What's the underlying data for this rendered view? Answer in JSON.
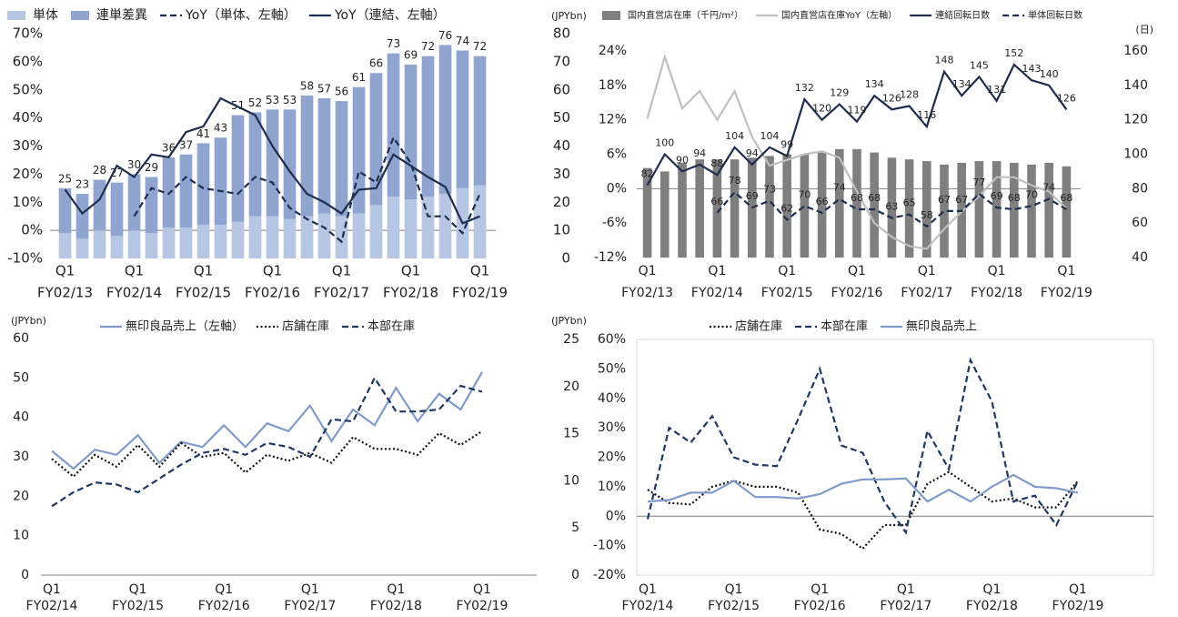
{
  "chart_data": [
    {
      "type": "bar",
      "stacked": true,
      "categories": [
        "FY02/13",
        null,
        null,
        null,
        "FY02/14",
        null,
        null,
        null,
        "FY02/15",
        null,
        null,
        null,
        "FY02/16",
        null,
        null,
        null,
        "FY02/17",
        null,
        null,
        null,
        "FY02/18",
        null,
        null,
        null,
        "FY02/19"
      ],
      "quarter_label": "Q1",
      "series": [
        {
          "name": "単体",
          "kind": "bar",
          "axis": "y2",
          "color": "#b7c6e3",
          "values": [
            9,
            7,
            10,
            8,
            10,
            9,
            11,
            11,
            12,
            12,
            13,
            15,
            15,
            14,
            15,
            16,
            15,
            16,
            19,
            22,
            21,
            22,
            23,
            25,
            26
          ]
        },
        {
          "name": "連単差異",
          "kind": "bar",
          "axis": "y2",
          "color": "#8fa5d0",
          "values": [
            16,
            16,
            18,
            19,
            20,
            20,
            25,
            26,
            29,
            31,
            38,
            37,
            38,
            39,
            43,
            41,
            41,
            45,
            47,
            51,
            48,
            50,
            53,
            49,
            46
          ]
        },
        {
          "name": "YoY（単体、左軸）",
          "kind": "line",
          "axis": "y",
          "dash": "dashed",
          "color": "#1f2d4e",
          "values": [
            null,
            null,
            null,
            null,
            5,
            15,
            13,
            19,
            15,
            14,
            13,
            19,
            17,
            8,
            4,
            1,
            -4,
            21,
            17,
            33,
            24,
            5,
            5,
            -1,
            13
          ]
        },
        {
          "name": "YoY（連結、左軸）",
          "kind": "line",
          "axis": "y",
          "dash": "solid",
          "color": "#1f2d4e",
          "values": [
            14.5,
            6,
            11,
            23,
            19,
            27,
            26,
            35,
            37,
            47,
            44,
            41,
            30,
            21,
            13,
            10,
            6,
            14.5,
            15,
            27,
            23,
            19,
            15.5,
            2.5,
            5
          ]
        }
      ],
      "bar_totals": [
        25,
        23,
        28,
        27,
        30,
        29,
        36,
        37,
        41,
        43,
        51,
        52,
        53,
        53,
        58,
        57,
        56,
        61,
        66,
        73,
        69,
        72,
        76,
        74,
        72
      ],
      "ylim": [
        -10,
        70
      ],
      "yticks": [
        {
          "value": -10,
          "label": "-10%"
        },
        {
          "value": 0,
          "label": "0%"
        },
        {
          "value": 10,
          "label": "10%"
        },
        {
          "value": 20,
          "label": "20%"
        },
        {
          "value": 30,
          "label": "30%"
        },
        {
          "value": 40,
          "label": "40%"
        },
        {
          "value": 50,
          "label": "50%"
        },
        {
          "value": 60,
          "label": "60%"
        },
        {
          "value": 70,
          "label": "70%"
        }
      ],
      "y2lim": [
        0,
        80
      ],
      "y2ticks": [
        0,
        10,
        20,
        30,
        40,
        50,
        60,
        70,
        80
      ],
      "negative_tick_color": "#ff0000",
      "legend": "top"
    },
    {
      "type": "bar",
      "unit_label": "(JPYbn)",
      "unit_label_right": "(日)",
      "categories": [
        "FY02/13",
        null,
        null,
        null,
        "FY02/14",
        null,
        null,
        null,
        "FY02/15",
        null,
        null,
        null,
        "FY02/16",
        null,
        null,
        null,
        "FY02/17",
        null,
        null,
        null,
        "FY02/18",
        null,
        null,
        null,
        "FY02/19"
      ],
      "quarter_label": "Q1",
      "series": [
        {
          "name": "国内直営店在庫（千円/m²）",
          "kind": "bar",
          "axis": "y2",
          "color": "#7f7f7f",
          "values": [
            52,
            50,
            55,
            57,
            57,
            57,
            58,
            59,
            60,
            60,
            61,
            63,
            63,
            61,
            58,
            57,
            56,
            54,
            55,
            56,
            56,
            55,
            54,
            55,
            53
          ]
        },
        {
          "name": "国内直営店在庫YoY（左軸）",
          "kind": "line",
          "axis": "y",
          "dash": "solid",
          "color": "#c0c0c0",
          "values": [
            12.2,
            23,
            14,
            17,
            12,
            17,
            9,
            4,
            5,
            6,
            6.5,
            5.4,
            -0.5,
            -6,
            -8.4,
            -10,
            -10.5,
            -7,
            -4,
            -1.3,
            2,
            2,
            0.6,
            -0.5,
            -3.5
          ]
        },
        {
          "name": "連結回転日数",
          "kind": "line",
          "axis": "y2",
          "dash": "solid",
          "color": "#1f2d4e",
          "labels": true,
          "values": [
            82,
            100,
            90,
            94,
            88,
            104,
            94,
            104,
            99,
            132,
            120,
            129,
            119,
            134,
            126,
            128,
            116,
            148,
            134,
            145,
            131,
            152,
            143,
            140,
            126
          ]
        },
        {
          "name": "単体回転日数",
          "kind": "line",
          "axis": "y2",
          "dash": "dashed",
          "color": "#1f2d4e",
          "labels": true,
          "values": [
            null,
            null,
            null,
            null,
            66,
            78,
            69,
            73,
            62,
            70,
            66,
            74,
            68,
            68,
            63,
            65,
            58,
            67,
            67,
            77,
            69,
            68,
            70,
            74,
            68
          ]
        }
      ],
      "ylim": [
        -12,
        24
      ],
      "yticks": [
        {
          "value": -12,
          "label": "-12%"
        },
        {
          "value": -6,
          "label": "-6%"
        },
        {
          "value": 0,
          "label": "0%"
        },
        {
          "value": 6,
          "label": "6%"
        },
        {
          "value": 12,
          "label": "12%"
        },
        {
          "value": 18,
          "label": "18%"
        },
        {
          "value": 24,
          "label": "24%"
        }
      ],
      "y2lim": [
        40,
        160
      ],
      "y2ticks": [
        40,
        60,
        80,
        100,
        120,
        140,
        160
      ],
      "negative_tick_color": "#ff0000",
      "legend": "top"
    },
    {
      "type": "line",
      "unit_label": "(JPYbn)",
      "categories": [
        "FY02/14",
        null,
        null,
        null,
        "FY02/15",
        null,
        null,
        null,
        "FY02/16",
        null,
        null,
        null,
        "FY02/17",
        null,
        null,
        null,
        "FY02/18",
        null,
        null,
        null,
        "FY02/19"
      ],
      "quarter_label": "Q1",
      "series": [
        {
          "name": "無印良品売上（左軸）",
          "kind": "line",
          "axis": "y",
          "dash": "solid",
          "color": "#7f9bc9",
          "values": [
            31.5,
            27,
            31.8,
            30.5,
            35.5,
            28.5,
            33.8,
            32.5,
            38,
            32.5,
            38.5,
            36.5,
            43,
            34,
            42,
            38,
            47.5,
            39,
            46,
            42,
            51.5
          ]
        },
        {
          "name": "店舗在庫",
          "kind": "line",
          "axis": "y",
          "dash": "dotted",
          "color": "#111111",
          "values": [
            29.5,
            25,
            30.5,
            27.5,
            33,
            27.5,
            33.5,
            30,
            31,
            26,
            30.5,
            29,
            31,
            28.5,
            35,
            32,
            32,
            30.5,
            36,
            33,
            36.5
          ]
        },
        {
          "name": "本部在庫",
          "kind": "line",
          "axis": "y",
          "dash": "dashed",
          "color": "#1f3864",
          "values": [
            17.5,
            21,
            23.5,
            23,
            21,
            24.5,
            28,
            31,
            32,
            30.5,
            33.5,
            32.5,
            30,
            39.5,
            39,
            50,
            41.5,
            41.5,
            42,
            48,
            46.5
          ]
        }
      ],
      "ylim": [
        0,
        60
      ],
      "yticks": [
        0,
        10,
        20,
        30,
        40,
        50,
        60
      ],
      "legend": "top"
    },
    {
      "type": "line",
      "unit_label": "(JPYbn)",
      "categories": [
        "FY02/14",
        null,
        null,
        null,
        "FY02/15",
        null,
        null,
        null,
        "FY02/16",
        null,
        null,
        null,
        "FY02/17",
        null,
        null,
        null,
        "FY02/18",
        null,
        null,
        null,
        "FY02/19"
      ],
      "quarter_label": "Q1",
      "series": [
        {
          "name": "店舗在庫",
          "kind": "line",
          "axis": "y2",
          "dash": "dotted",
          "color": "#111111",
          "values": [
            9,
            4.5,
            4,
            10,
            12,
            10,
            10,
            8,
            -4.5,
            -6,
            -11,
            -3,
            -3,
            11,
            15,
            10,
            5,
            6,
            3,
            3,
            12
          ]
        },
        {
          "name": "本部在庫",
          "kind": "line",
          "axis": "y2",
          "dash": "dashed",
          "color": "#1f3864",
          "values": [
            -1,
            30,
            25,
            34,
            20,
            17.5,
            17,
            33,
            50,
            24,
            21.5,
            5,
            -5.5,
            29,
            16,
            53,
            39,
            5,
            7,
            -3,
            12
          ]
        },
        {
          "name": "無印良品売上",
          "kind": "line",
          "axis": "y2",
          "dash": "solid",
          "color": "#7f9bc9",
          "values": [
            5,
            5.5,
            8,
            8,
            12,
            6.5,
            6.5,
            6,
            7.5,
            11,
            12.5,
            12.5,
            12.8,
            5,
            9,
            5,
            10,
            14,
            10,
            9.5,
            8
          ]
        }
      ],
      "ylim": [
        0,
        25
      ],
      "yticks": [
        0,
        5,
        10,
        15,
        20,
        25
      ],
      "y2lim": [
        -20,
        60
      ],
      "y2ticks": [
        {
          "value": -20,
          "label": "-20%"
        },
        {
          "value": -10,
          "label": "-10%"
        },
        {
          "value": 0,
          "label": "0%"
        },
        {
          "value": 10,
          "label": "10%"
        },
        {
          "value": 20,
          "label": "20%"
        },
        {
          "value": 30,
          "label": "30%"
        },
        {
          "value": 40,
          "label": "40%"
        },
        {
          "value": 50,
          "label": "50%"
        },
        {
          "value": 60,
          "label": "60%"
        }
      ],
      "negative_tick_color": "#ff0000",
      "legend": "top"
    }
  ]
}
